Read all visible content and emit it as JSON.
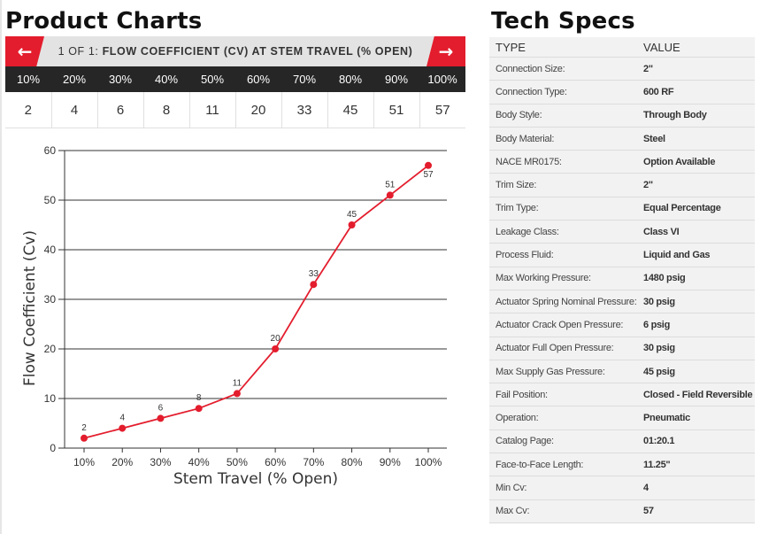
{
  "product_charts": {
    "title": "Product Charts",
    "carousel": {
      "prev_icon": "←",
      "next_icon": "→",
      "page_indicator": "1 OF 1:",
      "chart_name": "FLOW COEFFICIENT (CV) AT STEM TRAVEL (% OPEN)"
    },
    "stem_table": {
      "headers": [
        "10%",
        "20%",
        "30%",
        "40%",
        "50%",
        "60%",
        "70%",
        "80%",
        "90%",
        "100%"
      ],
      "values": [
        "2",
        "4",
        "6",
        "8",
        "11",
        "20",
        "33",
        "45",
        "51",
        "57"
      ]
    }
  },
  "chart_data": {
    "type": "line",
    "title": "",
    "xlabel": "Stem Travel (% Open)",
    "ylabel": "Flow Coefficient (Cv)",
    "categories": [
      "10%",
      "20%",
      "30%",
      "40%",
      "50%",
      "60%",
      "70%",
      "80%",
      "90%",
      "100%"
    ],
    "series": [
      {
        "values": [
          2,
          4,
          6,
          8,
          11,
          20,
          33,
          45,
          51,
          57
        ],
        "color": "#e31d2d"
      }
    ],
    "ylim": [
      0,
      60
    ],
    "yticks": [
      0,
      10,
      20,
      30,
      40,
      50,
      60
    ],
    "grid": "horizontal",
    "data_labels": true,
    "legend": "none"
  },
  "tech_specs": {
    "title": "Tech Specs",
    "col_type": "TYPE",
    "col_value": "VALUE",
    "rows": [
      {
        "type": "Connection Size:",
        "value": "2\""
      },
      {
        "type": "Connection Type:",
        "value": "600 RF"
      },
      {
        "type": "Body Style:",
        "value": "Through Body"
      },
      {
        "type": "Body Material:",
        "value": "Steel"
      },
      {
        "type": "NACE MR0175:",
        "value": "Option Available"
      },
      {
        "type": "Trim Size:",
        "value": "2\""
      },
      {
        "type": "Trim Type:",
        "value": "Equal Percentage"
      },
      {
        "type": "Leakage Class:",
        "value": "Class VI"
      },
      {
        "type": "Process Fluid:",
        "value": "Liquid and Gas"
      },
      {
        "type": "Max Working Pressure:",
        "value": "1480 psig"
      },
      {
        "type": "Actuator Spring Nominal Pressure:",
        "value": "30 psig"
      },
      {
        "type": "Actuator Crack Open Pressure:",
        "value": "6 psig"
      },
      {
        "type": "Actuator Full Open Pressure:",
        "value": "30 psig"
      },
      {
        "type": "Max Supply Gas Pressure:",
        "value": "45 psig"
      },
      {
        "type": "Fail Position:",
        "value": "Closed - Field Reversible"
      },
      {
        "type": "Operation:",
        "value": "Pneumatic"
      },
      {
        "type": "Catalog Page:",
        "value": "01:20.1"
      },
      {
        "type": "Face-to-Face Length:",
        "value": "11.25\""
      },
      {
        "type": "Min Cv:",
        "value": "4"
      },
      {
        "type": "Max Cv:",
        "value": "57"
      }
    ]
  },
  "colors": {
    "accent": "#e31d2d",
    "table_header": "#262626",
    "specs_background": "#f2f2f2"
  }
}
